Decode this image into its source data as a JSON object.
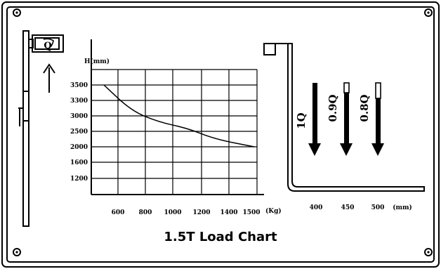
{
  "title": "1.5T Load Chart",
  "chart_data": {
    "type": "line",
    "ylabel": "H(mm)",
    "xlabel": "(Kg)",
    "y_ticks": [
      "3500",
      "3300",
      "3000",
      "2500",
      "2000",
      "1600",
      "1200"
    ],
    "x_ticks": [
      "600",
      "800",
      "1000",
      "1200",
      "1400",
      "1500"
    ],
    "series": [
      {
        "x": [
          600,
          800,
          1000,
          1200,
          1400,
          1500
        ],
        "y": [
          3500,
          3100,
          2800,
          2600,
          2250,
          2000
        ]
      }
    ]
  },
  "center_loads": {
    "labels": [
      "1Q",
      "0.9Q",
      "0.8Q"
    ],
    "distances": [
      "400",
      "450",
      "500"
    ],
    "unit": "(mm)"
  },
  "mast_label": "Q"
}
